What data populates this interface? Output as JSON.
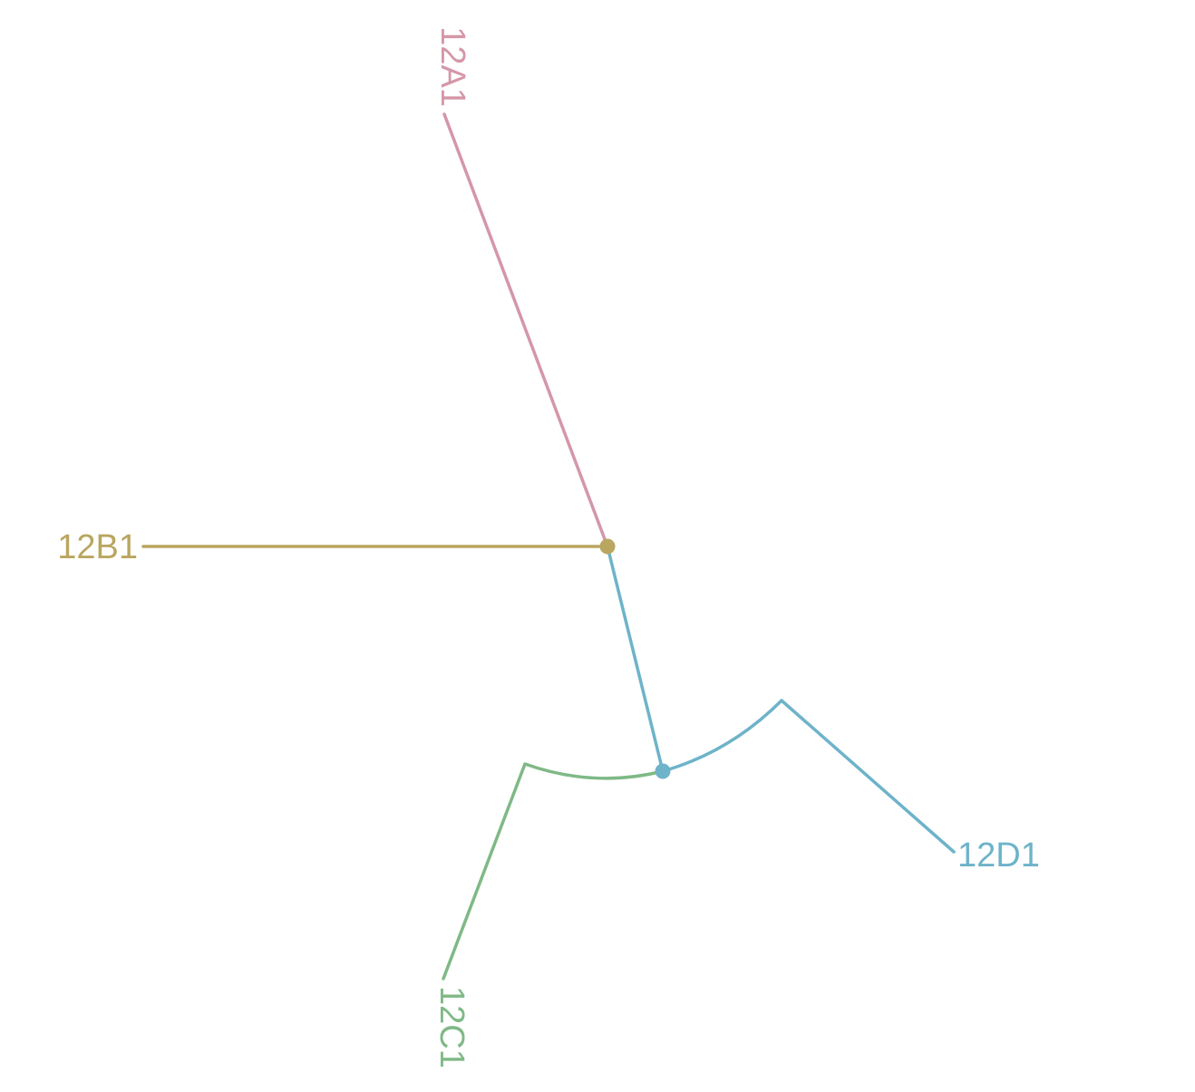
{
  "tree": {
    "layout": "unrooted",
    "tips": [
      {
        "label": "12A1",
        "color": "#d497a8"
      },
      {
        "label": "12B1",
        "color": "#b9a660"
      },
      {
        "label": "12C1",
        "color": "#7fb986"
      },
      {
        "label": "12D1",
        "color": "#6eb3c9"
      }
    ],
    "internal_nodes": [
      {
        "id": "node-ab",
        "color": "#b9a660"
      },
      {
        "id": "node-cd",
        "color": "#6eb3c9"
      }
    ],
    "connector_color": "#6eb3c9"
  }
}
